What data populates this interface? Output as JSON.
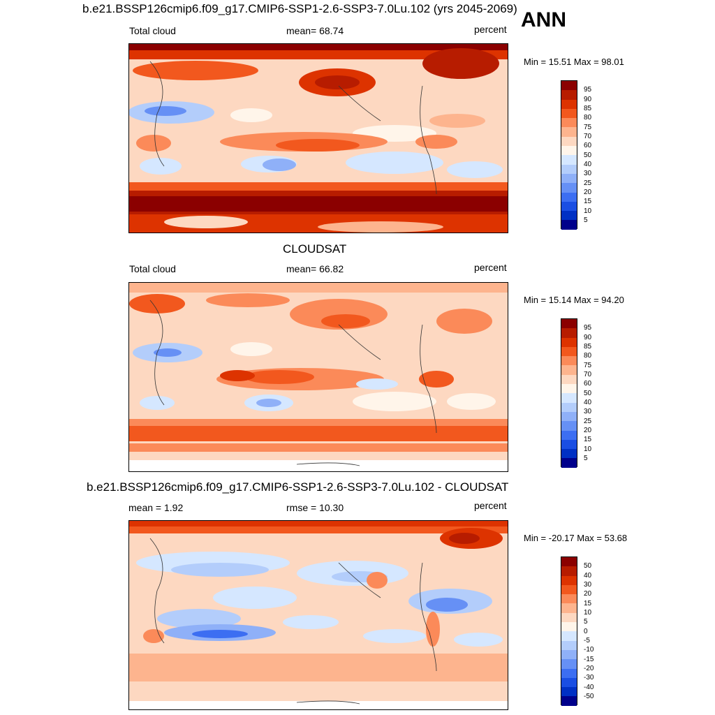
{
  "season": "ANN",
  "panels": [
    {
      "title": "b.e21.BSSP126cmip6.f09_g17.CMIP6-SSP1-2.6-SSP3-7.0Lu.102 (yrs 2045-2069)",
      "left_label": "Total cloud",
      "center_label": "mean=  68.74",
      "units": "percent",
      "minmax": "Min =  15.51 Max =  98.01",
      "colorbar_ticks": [
        "95",
        "90",
        "85",
        "80",
        "75",
        "70",
        "60",
        "50",
        "40",
        "30",
        "25",
        "20",
        "15",
        "10",
        "5"
      ]
    },
    {
      "title": "CLOUDSAT",
      "left_label": "Total cloud",
      "center_label": "mean=  66.82",
      "units": "percent",
      "minmax": "Min =  15.14 Max =  94.20",
      "colorbar_ticks": [
        "95",
        "90",
        "85",
        "80",
        "75",
        "70",
        "60",
        "50",
        "40",
        "30",
        "25",
        "20",
        "15",
        "10",
        "5"
      ]
    },
    {
      "title": "b.e21.BSSP126cmip6.f09_g17.CMIP6-SSP1-2.6-SSP3-7.0Lu.102 - CLOUDSAT",
      "left_label": "mean =   1.92",
      "center_label": "rmse =  10.30",
      "units": "percent",
      "minmax": "Min = -20.17 Max =  53.68",
      "colorbar_ticks": [
        "50",
        "40",
        "30",
        "20",
        "15",
        "10",
        "5",
        "0",
        "-5",
        "-10",
        "-15",
        "-20",
        "-30",
        "-40",
        "-50"
      ]
    }
  ],
  "colorbar_colors": [
    "#8b0000",
    "#b71c00",
    "#dd3300",
    "#f2581e",
    "#fb8a59",
    "#fdb48e",
    "#fdd8c1",
    "#fff5ea",
    "#d5e7ff",
    "#b3cdfb",
    "#8fb0f8",
    "#6690f5",
    "#3c6ef2",
    "#1a4ee3",
    "#0030c4",
    "#00008b"
  ]
}
